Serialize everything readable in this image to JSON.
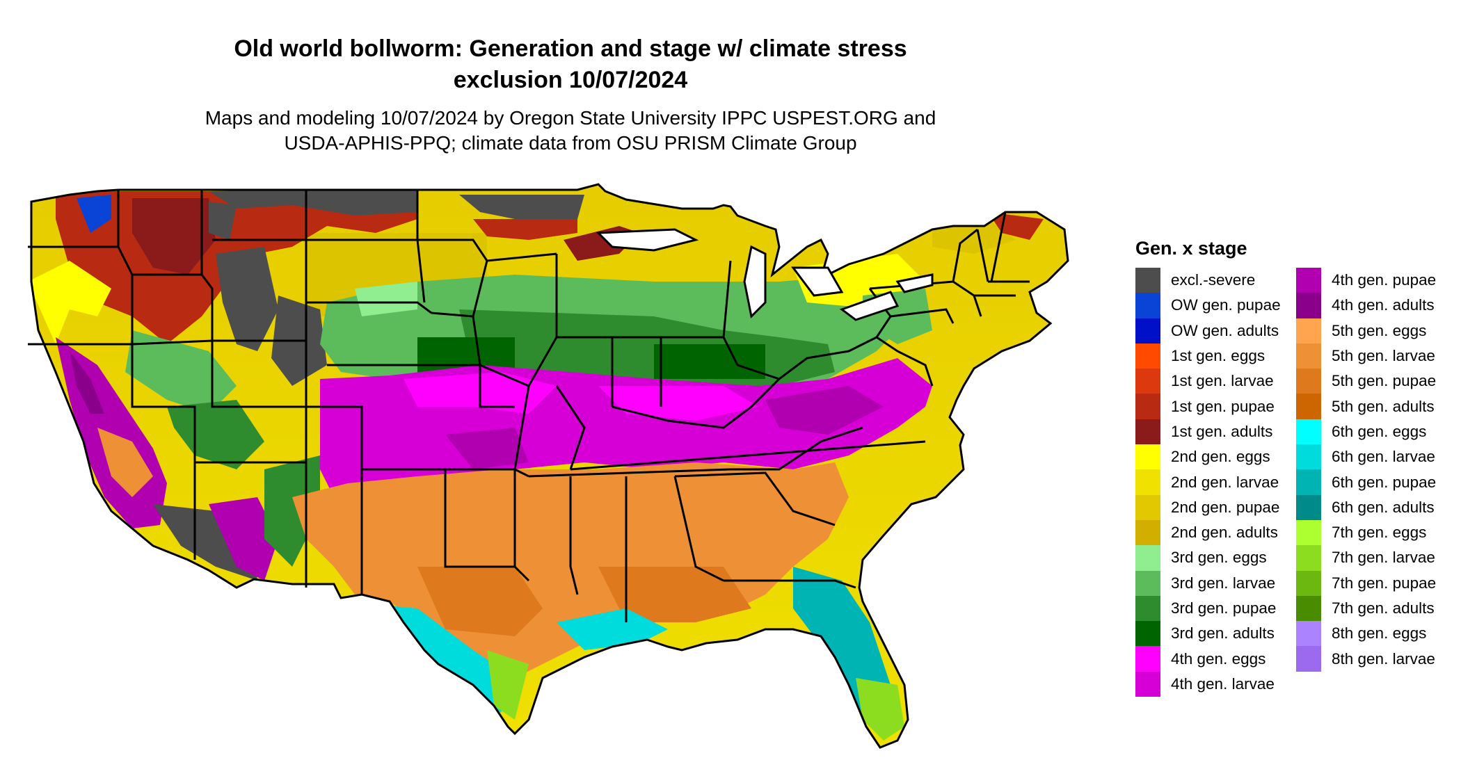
{
  "title": {
    "line1": "Old world bollworm: Generation and stage w/ climate stress",
    "line2": "exclusion 10/07/2024"
  },
  "subtitle": {
    "line1": "Maps and modeling 10/07/2024 by Oregon State University IPPC USPEST.ORG and",
    "line2": "USDA-APHIS-PPQ; climate data from OSU PRISM Climate Group"
  },
  "legend": {
    "title": "Gen. x stage",
    "items": [
      {
        "label": "excl.-severe",
        "color": "#4d4d4d"
      },
      {
        "label": "OW gen. pupae",
        "color": "#0a44d6"
      },
      {
        "label": "OW gen. adults",
        "color": "#0010c8"
      },
      {
        "label": "1st gen. eggs",
        "color": "#ff4a00"
      },
      {
        "label": "1st gen. larvae",
        "color": "#dc3a0e"
      },
      {
        "label": "1st gen. pupae",
        "color": "#b82b12"
      },
      {
        "label": "1st gen. adults",
        "color": "#8b1a1a"
      },
      {
        "label": "2nd gen. eggs",
        "color": "#ffff00"
      },
      {
        "label": "2nd gen. larvae",
        "color": "#f0e100"
      },
      {
        "label": "2nd gen. pupae",
        "color": "#e2c800"
      },
      {
        "label": "2nd gen. adults",
        "color": "#d2ae00"
      },
      {
        "label": "3rd gen. eggs",
        "color": "#90ee90"
      },
      {
        "label": "3rd gen. larvae",
        "color": "#5cbc5c"
      },
      {
        "label": "3rd gen. pupae",
        "color": "#2e8b2e"
      },
      {
        "label": "3rd gen. adults",
        "color": "#006400"
      },
      {
        "label": "4th gen. eggs",
        "color": "#ff00ff"
      },
      {
        "label": "4th gen. larvae",
        "color": "#d600d6"
      },
      {
        "label": "4th gen. pupae",
        "color": "#b000b0"
      },
      {
        "label": "4th gen. adults",
        "color": "#8b008b"
      },
      {
        "label": "5th gen. eggs",
        "color": "#ffa54f"
      },
      {
        "label": "5th gen. larvae",
        "color": "#ee9035"
      },
      {
        "label": "5th gen. pupae",
        "color": "#de7a1d"
      },
      {
        "label": "5th gen. adults",
        "color": "#cd6600"
      },
      {
        "label": "6th gen. eggs",
        "color": "#00ffff"
      },
      {
        "label": "6th gen. larvae",
        "color": "#00dcdc"
      },
      {
        "label": "6th gen. pupae",
        "color": "#00b4b4"
      },
      {
        "label": "6th gen. adults",
        "color": "#008b8b"
      },
      {
        "label": "7th gen. eggs",
        "color": "#adff2f"
      },
      {
        "label": "7th gen. larvae",
        "color": "#8cdc20"
      },
      {
        "label": "7th gen. pupae",
        "color": "#6cb810"
      },
      {
        "label": "7th gen. adults",
        "color": "#4a8c00"
      },
      {
        "label": "8th gen. eggs",
        "color": "#ab82ff"
      },
      {
        "label": "8th gen. larvae",
        "color": "#9b6aee"
      }
    ]
  }
}
